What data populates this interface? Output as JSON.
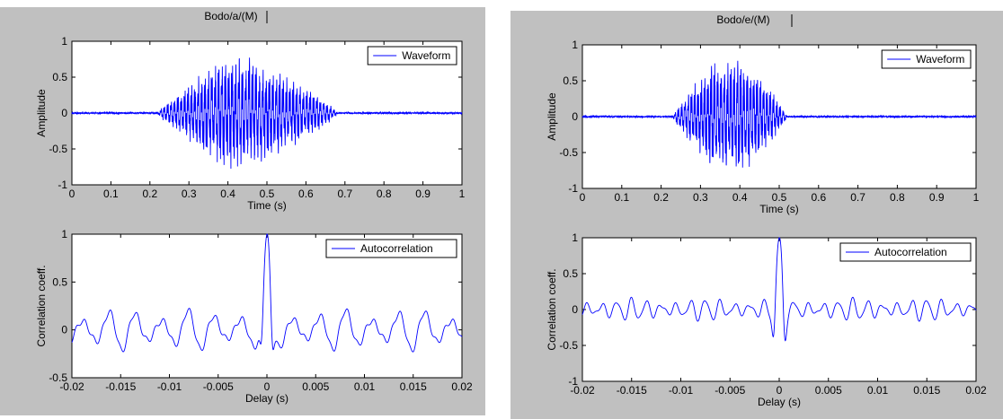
{
  "panels": [
    {
      "title": "Bodo/a/(M)",
      "top": {
        "type": "line",
        "ylabel": "Amplitude",
        "xlabel": "Time (s)",
        "xlim": [
          0,
          1
        ],
        "ylim": [
          -1,
          1
        ],
        "xticks": [
          "0",
          "0.1",
          "0.2",
          "0.3",
          "0.4",
          "0.5",
          "0.6",
          "0.7",
          "0.8",
          "0.9",
          "1"
        ],
        "yticks": [
          "1",
          "0.5",
          "0",
          "-0.5",
          "-1"
        ],
        "legend": "Waveform",
        "series_color": "#0000ff",
        "signal": {
          "onset": 0.22,
          "offset": 0.68,
          "peak_time": 0.4,
          "peak_amp": 0.82,
          "f0": 115
        }
      },
      "bottom": {
        "type": "line",
        "ylabel": "Correlation coeff.",
        "xlabel": "Delay (s)",
        "xlim": [
          -0.02,
          0.02
        ],
        "ylim": [
          -0.5,
          1
        ],
        "xticks": [
          "-0.02",
          "-0.015",
          "-0.01",
          "-0.005",
          "0",
          "0.005",
          "0.01",
          "0.015",
          "0.02"
        ],
        "yticks": [
          "1",
          "0.5",
          "0",
          "-0.5"
        ],
        "legend": "Autocorrelation",
        "series_color": "#0000ff",
        "signal": {
          "period": 0.0027,
          "side_amp": 0.18,
          "center_dip": -0.45
        }
      }
    },
    {
      "title": "Bodo/e/(M)",
      "top": {
        "type": "line",
        "ylabel": "Amplitude",
        "xlabel": "Time (s)",
        "xlim": [
          0,
          1
        ],
        "ylim": [
          -1,
          1
        ],
        "xticks": [
          "0",
          "0.1",
          "0.2",
          "0.3",
          "0.4",
          "0.5",
          "0.6",
          "0.7",
          "0.8",
          "0.9",
          "1"
        ],
        "yticks": [
          "1",
          "0.5",
          "0",
          "-0.5",
          "-1"
        ],
        "legend": "Waveform",
        "series_color": "#0000ff",
        "signal": {
          "onset": 0.23,
          "offset": 0.52,
          "peak_time": 0.38,
          "peak_amp": 0.85,
          "f0": 120
        }
      },
      "bottom": {
        "type": "line",
        "ylabel": "Correlation coeff.",
        "xlabel": "Delay (s)",
        "xlim": [
          -0.02,
          0.02
        ],
        "ylim": [
          -1,
          1
        ],
        "xticks": [
          "-0.02",
          "-0.015",
          "-0.01",
          "-0.005",
          "0",
          "0.005",
          "0.01",
          "0.015",
          "0.02"
        ],
        "yticks": [
          "1",
          "0.5",
          "0",
          "-0.5",
          "-1"
        ],
        "legend": "Autocorrelation",
        "series_color": "#0000ff",
        "signal": {
          "period": 0.0015,
          "side_amp": 0.12,
          "center_dip": -0.6
        }
      }
    }
  ]
}
